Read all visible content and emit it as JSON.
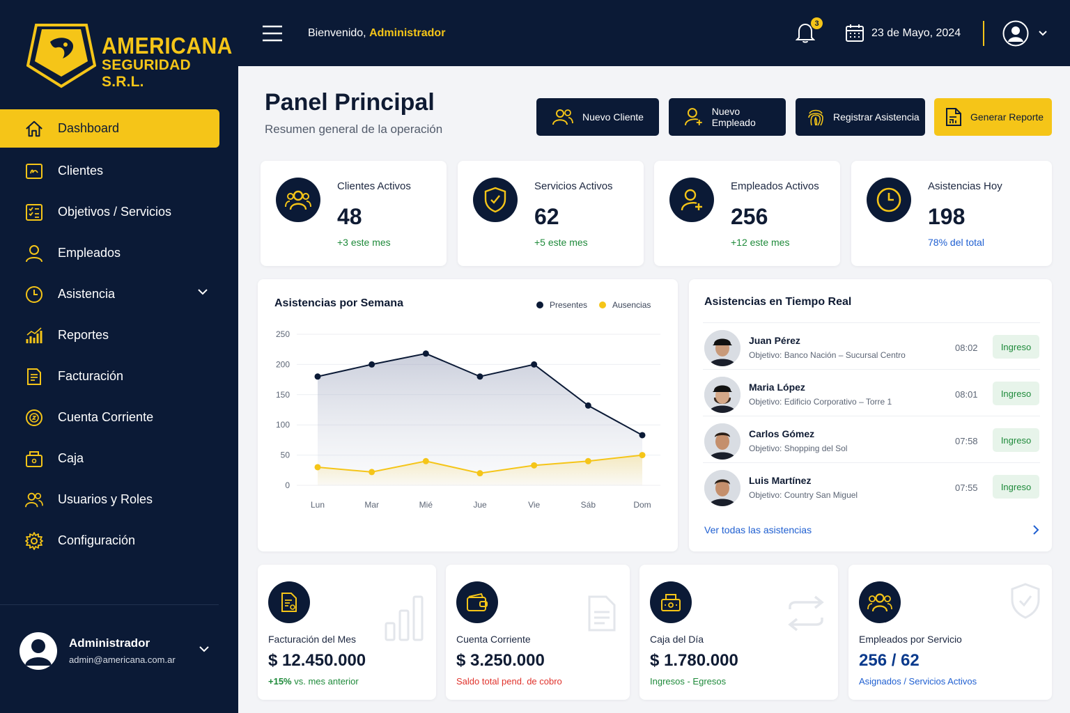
{
  "brand": {
    "name_line1": "AMERICANA",
    "name_line2": "SEGURIDAD S.R.L."
  },
  "sidebar": {
    "items": [
      {
        "label": "Dashboard",
        "icon": "home-icon"
      },
      {
        "label": "Clientes",
        "icon": "client-card-icon"
      },
      {
        "label": "Objetivos / Servicios",
        "icon": "checklist-icon"
      },
      {
        "label": "Empleados",
        "icon": "user-icon"
      },
      {
        "label": "Asistencia",
        "icon": "clock-icon"
      },
      {
        "label": "Reportes",
        "icon": "bar-chart-icon"
      },
      {
        "label": "Facturación",
        "icon": "invoice-icon"
      },
      {
        "label": "Cuenta Corriente",
        "icon": "coin-icon"
      },
      {
        "label": "Caja",
        "icon": "cash-register-icon"
      },
      {
        "label": "Usuarios y Roles",
        "icon": "users-icon"
      },
      {
        "label": "Configuración",
        "icon": "gear-icon"
      }
    ],
    "user": {
      "name": "Administrador",
      "email": "admin@americana.com.ar"
    }
  },
  "topbar": {
    "welcome_prefix": "Bienvenido,",
    "welcome_name": "Administrador",
    "notifications": "3",
    "date": "23 de Mayo, 2024"
  },
  "header": {
    "title": "Panel Principal",
    "subtitle": "Resumen general de la operación",
    "buttons": [
      "Nuevo Cliente",
      "Nuevo Empleado",
      "Registrar Asistencia",
      "Generar Reporte"
    ]
  },
  "stats": [
    {
      "label": "Clientes Activos",
      "value": "48",
      "delta": "+3 este mes",
      "icon": "users-icon"
    },
    {
      "label": "Servicios Activos",
      "value": "62",
      "delta": "+5 este mes",
      "icon": "shield-check-icon"
    },
    {
      "label": "Empleados Activos",
      "value": "256",
      "delta": "+12 este mes",
      "icon": "user-add-icon"
    },
    {
      "label": "Asistencias Hoy",
      "value": "198",
      "delta": "78% del total",
      "icon": "clock-icon"
    }
  ],
  "chart_data": {
    "type": "line",
    "title": "Asistencias por Semana",
    "categories": [
      "Lun",
      "Mar",
      "Mié",
      "Jue",
      "Vie",
      "Sáb",
      "Dom"
    ],
    "series": [
      {
        "name": "Presentes",
        "values": [
          180,
          200,
          218,
          180,
          200,
          132,
          83
        ],
        "color": "#0b1a36"
      },
      {
        "name": "Ausencias",
        "values": [
          30,
          22,
          40,
          20,
          33,
          40,
          50
        ],
        "color": "#f5c518"
      }
    ],
    "ylim": [
      0,
      250
    ],
    "yticks": [
      0,
      50,
      100,
      150,
      200,
      250
    ],
    "legend": "top-right",
    "grid": true
  },
  "realtime": {
    "title": "Asistencias en Tiempo Real",
    "rows": [
      {
        "name": "Juan Pérez",
        "objective": "Objetivo: Banco Nación – Sucursal Centro",
        "time": "08:02",
        "status": "Ingreso"
      },
      {
        "name": "Maria López",
        "objective": "Objetivo: Edificio Corporativo – Torre 1",
        "time": "08:01",
        "status": "Ingreso"
      },
      {
        "name": "Carlos Gómez",
        "objective": "Objetivo: Shopping del Sol",
        "time": "07:58",
        "status": "Ingreso"
      },
      {
        "name": "Luis Martínez",
        "objective": "Objetivo: Country San Miguel",
        "time": "07:55",
        "status": "Ingreso"
      }
    ],
    "link": "Ver todas las asistencias"
  },
  "bottom": [
    {
      "label": "Facturación del Mes",
      "value": "$ 12.450.000",
      "sub_strong": "+15%",
      "sub": " vs. mes anterior",
      "color": "#1e8a3a"
    },
    {
      "label": "Cuenta Corriente",
      "value": "$ 3.250.000",
      "sub_strong": "",
      "sub": "Saldo total pend. de cobro",
      "color": "#e0322b"
    },
    {
      "label": "Caja del Día",
      "value": "$ 1.780.000",
      "sub_strong": "",
      "sub": "Ingresos - Egresos",
      "color": "#1e8a3a"
    },
    {
      "label": "Empleados por Servicio",
      "value": "256 / 62",
      "sub_strong": "",
      "sub": "Asignados / Servicios Activos",
      "color": "#1f5fd1"
    }
  ],
  "colors": {
    "navy": "#0b1a36",
    "accent": "#f5c518",
    "positive": "#1e8a3a",
    "negative": "#e0322b",
    "link": "#1f5fd1"
  }
}
